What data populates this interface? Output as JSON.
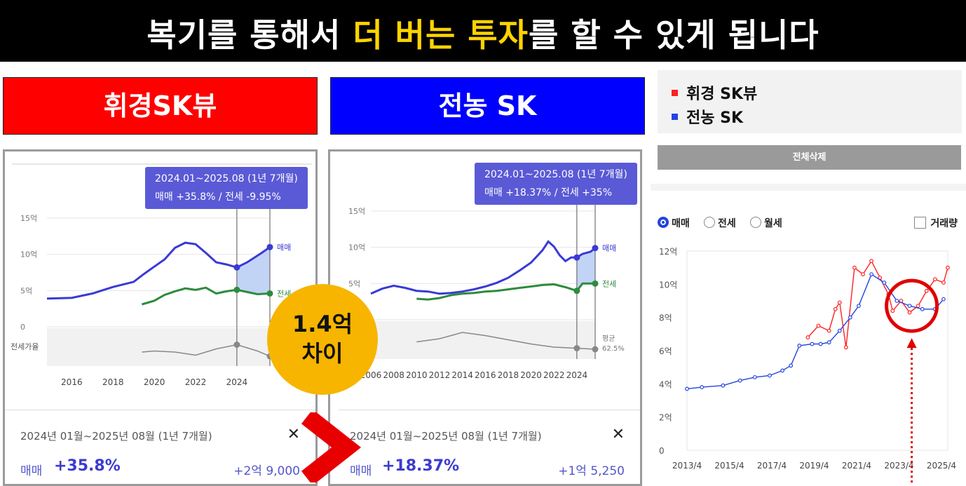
{
  "banner": {
    "part1": "복기를 통해서 ",
    "highlight": "더 버는 투자",
    "part2": "를 할 수 있게 됩니다"
  },
  "labels": {
    "left": "휘경SK뷰",
    "middle": "전농 SK"
  },
  "badge": {
    "line1": "1.4억",
    "line2": "차이",
    "color": "#f7b500"
  },
  "left_panel": {
    "tooltip_line1": "2024.01~2025.08 (1년 7개월)",
    "tooltip_line2": "매매 +35.8%  /  전세 -9.95%",
    "detail_range": "2024년 01월~2025년 08월 (1년 7개월)",
    "close_icon": "close-icon",
    "close_label": "✕",
    "detail_label": "매매",
    "detail_pct": "+35.8%",
    "detail_amount": "+2억 9,000"
  },
  "middle_panel": {
    "tooltip_line1": "2024.01~2025.08 (1년 7개월)",
    "tooltip_line2": "매매 +18.37%  /  전세 +35%",
    "detail_range": "2024년 01월~2025년 08월 (1년 7개월)",
    "close_icon": "close-icon",
    "close_label": "✕",
    "detail_label": "매매",
    "detail_pct": "+18.37%",
    "detail_amount": "+1억 5,250"
  },
  "legend": {
    "items": [
      {
        "label": "휘경 SK뷰",
        "color": "#ff2020"
      },
      {
        "label": "전농 SK",
        "color": "#2244dd"
      }
    ]
  },
  "delete_button": "전체삭제",
  "right_controls": {
    "radios": [
      {
        "label": "매매",
        "selected": true
      },
      {
        "label": "전세",
        "selected": false
      },
      {
        "label": "월세",
        "selected": false
      }
    ],
    "checkbox_label": "거래량"
  },
  "chart_data": [
    {
      "type": "line",
      "xlabel": "",
      "ylabel": "",
      "x_ticks": [
        "2016",
        "2018",
        "2020",
        "2022",
        "2024"
      ],
      "y_ticks": [
        "15억",
        "10억",
        "5억",
        "0"
      ],
      "ylim": [
        0,
        15
      ],
      "lower_band_label": "전세가율",
      "series": [
        {
          "name": "매매",
          "color": "#3a3ad6",
          "x": [
            2014.8,
            2016,
            2017,
            2018,
            2019,
            2019.5,
            2020,
            2020.5,
            2021,
            2021.5,
            2022,
            2022.5,
            2023,
            2023.5,
            2024,
            2024.5,
            2025.2,
            2025.6
          ],
          "y": [
            3.9,
            4.0,
            4.6,
            5.5,
            6.2,
            7.3,
            8.3,
            9.3,
            10.9,
            11.6,
            11.4,
            10.2,
            8.9,
            8.6,
            8.2,
            8.9,
            10.2,
            11.0
          ]
        },
        {
          "name": "전세",
          "color": "#2e8b3e",
          "x": [
            2019.4,
            2020,
            2020.5,
            2021,
            2021.5,
            2022,
            2022.5,
            2023,
            2023.5,
            2024,
            2024.5,
            2025,
            2025.6
          ],
          "y": [
            3.1,
            3.6,
            4.4,
            4.9,
            5.3,
            5.1,
            5.4,
            4.6,
            4.9,
            5.1,
            4.8,
            4.5,
            4.6
          ]
        },
        {
          "name": "전세가율",
          "color": "#888888",
          "x": [
            2019.4,
            2020,
            2021,
            2022,
            2023,
            2024,
            2024.5,
            2025,
            2025.6
          ],
          "y": [
            -2.4,
            -2.3,
            -2.4,
            -2.7,
            -2.1,
            -1.7,
            -2.0,
            -2.3,
            -2.8
          ]
        }
      ],
      "highlight_range": [
        "2024.01",
        "2025.08"
      ]
    },
    {
      "type": "line",
      "xlabel": "",
      "ylabel": "",
      "x_ticks": [
        "2006",
        "2008",
        "2010",
        "2012",
        "2014",
        "2016",
        "2018",
        "2020",
        "2022",
        "2024"
      ],
      "y_ticks": [
        "15억",
        "10억",
        "5억",
        "0"
      ],
      "ylim": [
        0,
        15
      ],
      "series": [
        {
          "name": "매매",
          "color": "#3a3ad6",
          "x": [
            2006,
            2007,
            2008,
            2009,
            2010,
            2011,
            2012,
            2013,
            2014,
            2015,
            2016,
            2017,
            2018,
            2019,
            2020,
            2021,
            2021.5,
            2022,
            2022.5,
            2023,
            2023.5,
            2024,
            2024.5,
            2025.2,
            2025.6
          ],
          "y": [
            3.6,
            4.3,
            4.7,
            4.4,
            4.0,
            3.9,
            3.6,
            3.7,
            3.9,
            4.2,
            4.6,
            5.1,
            5.8,
            6.8,
            7.9,
            9.6,
            10.8,
            10.1,
            8.9,
            8.1,
            8.6,
            8.6,
            9.1,
            9.4,
            9.9
          ]
        },
        {
          "name": "전세",
          "color": "#2e8b3e",
          "x": [
            2010,
            2011,
            2012,
            2013,
            2014,
            2015,
            2016,
            2017,
            2018,
            2019,
            2020,
            2021,
            2022,
            2023,
            2024,
            2024.5,
            2025.6
          ],
          "y": [
            2.9,
            2.8,
            3.0,
            3.4,
            3.6,
            3.7,
            3.9,
            4.0,
            4.2,
            4.4,
            4.6,
            4.8,
            4.9,
            4.5,
            4.0,
            5.0,
            5.0
          ]
        },
        {
          "name": "평균",
          "color": "#888888",
          "x": [
            2010,
            2012,
            2014,
            2016,
            2018,
            2020,
            2022,
            2024,
            2025.6
          ],
          "y": [
            -2.1,
            -1.8,
            -1.2,
            -1.5,
            -1.9,
            -2.3,
            -2.6,
            -2.7,
            -2.8
          ]
        }
      ],
      "avg_label": "평균",
      "avg_value": "62.5%",
      "highlight_range": [
        "2024.01",
        "2025.08"
      ]
    },
    {
      "type": "line",
      "xlabel": "",
      "ylabel": "",
      "x_ticks": [
        "2013/4",
        "2015/4",
        "2017/4",
        "2019/4",
        "2021/4",
        "2023/4",
        "2025/4"
      ],
      "y_ticks": [
        "12억",
        "10억",
        "8억",
        "6억",
        "4억",
        "2억",
        "0"
      ],
      "ylim": [
        0,
        12
      ],
      "series": [
        {
          "name": "휘경 SK뷰",
          "color": "#ff2020",
          "x": [
            2019.0,
            2019.5,
            2020.0,
            2020.3,
            2020.5,
            2020.8,
            2021.2,
            2021.6,
            2022.0,
            2022.4,
            2022.8,
            2023.0,
            2023.4,
            2023.8,
            2024.2,
            2024.6,
            2025.0,
            2025.4,
            2025.6
          ],
          "y": [
            6.8,
            7.5,
            7.2,
            8.5,
            8.9,
            6.2,
            11.0,
            10.6,
            11.4,
            10.4,
            9.4,
            8.4,
            9.0,
            8.3,
            8.7,
            9.6,
            10.3,
            10.1,
            11.0
          ]
        },
        {
          "name": "전농 SK",
          "color": "#2244dd",
          "x": [
            2013.3,
            2014.0,
            2015.0,
            2015.8,
            2016.5,
            2017.2,
            2017.8,
            2018.2,
            2018.6,
            2019.2,
            2019.6,
            2020.0,
            2020.5,
            2021.0,
            2021.4,
            2022.0,
            2022.6,
            2023.2,
            2023.8,
            2024.4,
            2025.0,
            2025.4
          ],
          "y": [
            3.7,
            3.8,
            3.9,
            4.2,
            4.4,
            4.5,
            4.8,
            5.1,
            6.3,
            6.4,
            6.4,
            6.5,
            7.2,
            8.0,
            8.7,
            10.6,
            10.1,
            9.0,
            8.7,
            8.5,
            8.5,
            9.1
          ]
        }
      ]
    }
  ]
}
